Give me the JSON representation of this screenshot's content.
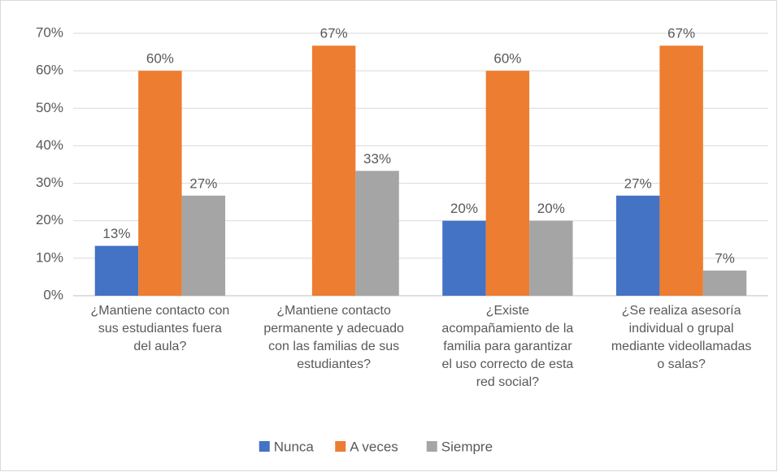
{
  "chart_data": {
    "type": "bar",
    "categories": [
      "¿Mantiene contacto con\nsus estudiantes fuera\ndel aula?",
      "¿Mantiene contacto\npermanente y adecuado\ncon las familias de sus\nestudiantes?",
      "¿Existe\nacompañamiento de la\nfamilia para garantizar\nel uso correcto de esta\nred social?",
      "¿Se realiza asesoría\nindividual o grupal\nmediante videollamadas\no salas?"
    ],
    "series": [
      {
        "name": "Nunca",
        "color": "#4472c4",
        "values": [
          13.3,
          0,
          20,
          26.7
        ],
        "value_labels": [
          "13%",
          null,
          "20%",
          "27%"
        ]
      },
      {
        "name": "A veces",
        "color": "#ed7d31",
        "values": [
          60,
          66.7,
          60,
          66.7
        ],
        "value_labels": [
          "60%",
          "67%",
          "60%",
          "67%"
        ]
      },
      {
        "name": "Siempre",
        "color": "#a5a5a5",
        "values": [
          26.7,
          33.3,
          20,
          6.7
        ],
        "value_labels": [
          "27%",
          "33%",
          "20%",
          "7%"
        ]
      }
    ],
    "ylim": [
      0,
      70
    ],
    "yticks": [
      {
        "value": 0,
        "label": "0%"
      },
      {
        "value": 10,
        "label": "10%"
      },
      {
        "value": 20,
        "label": "20%"
      },
      {
        "value": 30,
        "label": "30%"
      },
      {
        "value": 40,
        "label": "40%"
      },
      {
        "value": 50,
        "label": "50%"
      },
      {
        "value": 60,
        "label": "60%"
      },
      {
        "value": 70,
        "label": "70%"
      }
    ],
    "grid": true,
    "legend": "bottom"
  }
}
